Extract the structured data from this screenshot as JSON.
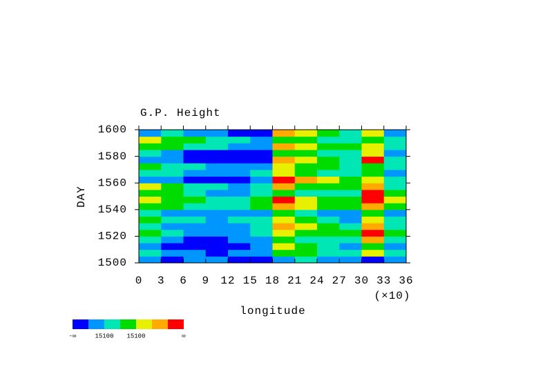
{
  "chart_data": {
    "type": "heatmap",
    "title": "G.P. Height",
    "xlabel": "longitude",
    "ylabel": "DAY",
    "x_multiplier": "(×10)",
    "xlim": [
      0,
      360
    ],
    "xticks": [
      {
        "value": 0,
        "label": "0"
      },
      {
        "value": 30,
        "label": "3"
      },
      {
        "value": 60,
        "label": "6"
      },
      {
        "value": 90,
        "label": "9"
      },
      {
        "value": 120,
        "label": "12"
      },
      {
        "value": 150,
        "label": "15"
      },
      {
        "value": 180,
        "label": "18"
      },
      {
        "value": 210,
        "label": "21"
      },
      {
        "value": 240,
        "label": "24"
      },
      {
        "value": 270,
        "label": "27"
      },
      {
        "value": 300,
        "label": "30"
      },
      {
        "value": 330,
        "label": "33"
      },
      {
        "value": 360,
        "label": "36"
      }
    ],
    "ylim": [
      1500,
      1600
    ],
    "yticks": [
      1500,
      1520,
      1540,
      1560,
      1580,
      1600
    ],
    "colors": [
      "#0000ff",
      "#0096ff",
      "#00e6b4",
      "#00dc00",
      "#e6f000",
      "#ffaa00",
      "#ff0000"
    ],
    "colorbar_labels": [
      "-∞",
      "15100",
      "15100",
      "∞"
    ],
    "z": [
      [
        1,
        0,
        1,
        1,
        0,
        0,
        1,
        2,
        1,
        1,
        0,
        1
      ],
      [
        2,
        1,
        1,
        0,
        1,
        1,
        3,
        3,
        2,
        2,
        4,
        2
      ],
      [
        1,
        0,
        0,
        0,
        0,
        1,
        4,
        3,
        2,
        1,
        3,
        1
      ],
      [
        2,
        1,
        0,
        0,
        1,
        1,
        3,
        2,
        2,
        2,
        5,
        2
      ],
      [
        3,
        2,
        1,
        1,
        1,
        2,
        4,
        3,
        3,
        3,
        6,
        3
      ],
      [
        2,
        1,
        1,
        1,
        1,
        2,
        5,
        4,
        3,
        2,
        5,
        2
      ],
      [
        3,
        2,
        2,
        1,
        2,
        2,
        4,
        3,
        2,
        1,
        4,
        2
      ],
      [
        2,
        1,
        1,
        1,
        1,
        1,
        3,
        2,
        1,
        1,
        3,
        1
      ],
      [
        3,
        3,
        2,
        2,
        2,
        3,
        5,
        4,
        3,
        3,
        5,
        3
      ],
      [
        4,
        3,
        3,
        2,
        2,
        3,
        6,
        4,
        3,
        3,
        6,
        4
      ],
      [
        3,
        3,
        2,
        1,
        1,
        2,
        3,
        2,
        2,
        2,
        6,
        3
      ],
      [
        4,
        3,
        2,
        2,
        1,
        2,
        5,
        3,
        3,
        3,
        5,
        2
      ],
      [
        1,
        1,
        0,
        0,
        0,
        1,
        6,
        5,
        4,
        3,
        4,
        2
      ],
      [
        2,
        2,
        1,
        1,
        1,
        2,
        4,
        3,
        2,
        2,
        3,
        1
      ],
      [
        3,
        2,
        2,
        1,
        1,
        1,
        4,
        3,
        3,
        2,
        3,
        2
      ],
      [
        1,
        1,
        0,
        0,
        0,
        0,
        5,
        4,
        3,
        2,
        6,
        2
      ],
      [
        2,
        1,
        0,
        0,
        0,
        0,
        3,
        3,
        2,
        2,
        4,
        1
      ],
      [
        3,
        3,
        2,
        2,
        1,
        1,
        5,
        4,
        3,
        3,
        4,
        2
      ],
      [
        4,
        3,
        3,
        2,
        2,
        1,
        3,
        3,
        2,
        2,
        3,
        2
      ],
      [
        1,
        2,
        1,
        1,
        0,
        0,
        5,
        4,
        3,
        2,
        4,
        1
      ]
    ]
  }
}
